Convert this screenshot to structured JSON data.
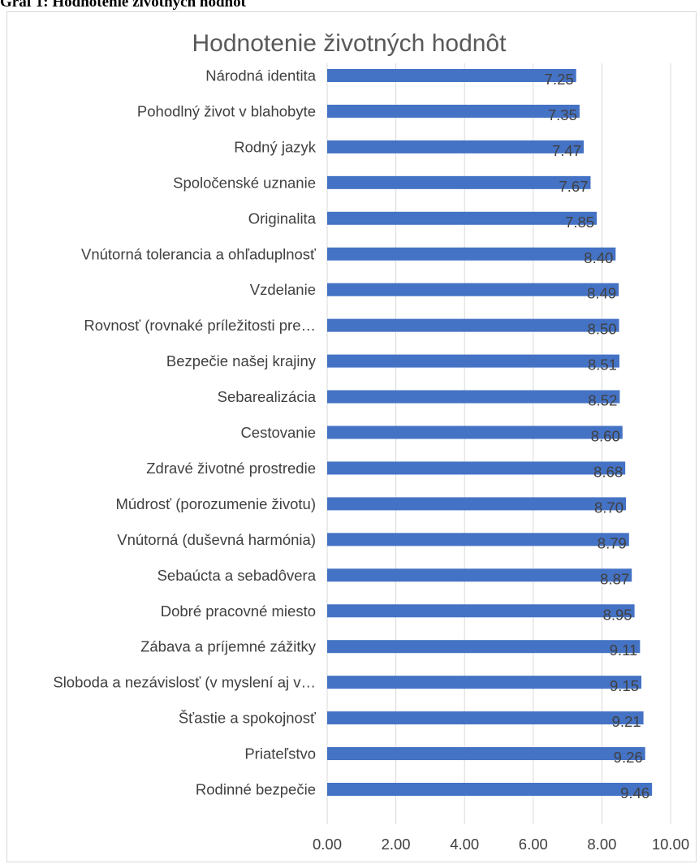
{
  "caption": "Graf 1: Hodnotenie životných hodnôt",
  "chart_data": {
    "type": "bar",
    "orientation": "horizontal",
    "title": "Hodnotenie životných hodnôt",
    "xlabel": "",
    "ylabel": "",
    "xlim": [
      0,
      10
    ],
    "x_ticks": [
      "0.00",
      "2.00",
      "4.00",
      "6.00",
      "8.00",
      "10.00"
    ],
    "grid": true,
    "legend": "none",
    "bar_color": "#4472c4",
    "categories": [
      "Národná identita",
      "Pohodlný život v blahobyte",
      "Rodný jazyk",
      "Spoločenské uznanie",
      "Originalita",
      "Vnútorná tolerancia a ohľaduplnosť",
      "Vzdelanie",
      "Rovnosť (rovnaké príležitosti pre…",
      "Bezpečie našej krajiny",
      "Sebarealizácia",
      "Cestovanie",
      "Zdravé životné prostredie",
      "Múdrosť (porozumenie životu)",
      "Vnútorná (duševná harmónia)",
      "Sebaúcta a sebadôvera",
      "Dobré pracovné miesto",
      "Zábava a príjemné zážitky",
      "Sloboda a nezávislosť (v myslení aj v…",
      "Šťastie a spokojnosť",
      "Priateľstvo",
      "Rodinné bezpečie"
    ],
    "values": [
      7.25,
      7.35,
      7.47,
      7.67,
      7.85,
      8.4,
      8.49,
      8.5,
      8.51,
      8.52,
      8.6,
      8.68,
      8.7,
      8.79,
      8.87,
      8.95,
      9.11,
      9.15,
      9.21,
      9.26,
      9.46
    ],
    "value_labels": [
      "7.25",
      "7.35",
      "7.47",
      "7.67",
      "7.85",
      "8.40",
      "8.49",
      "8.50",
      "8.51",
      "8.52",
      "8.60",
      "8.68",
      "8.70",
      "8.79",
      "8.87",
      "8.95",
      "9.11",
      "9.15",
      "9.21",
      "9.26",
      "9.46"
    ]
  }
}
